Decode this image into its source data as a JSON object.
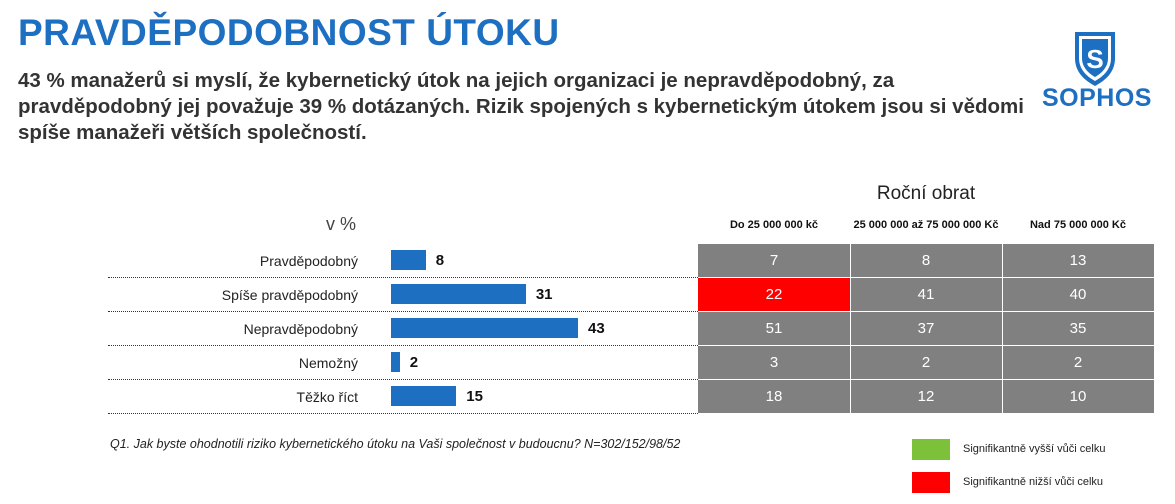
{
  "title": "PRAVDĚPODOBNOST ÚTOKU",
  "subtitle": "43 % manažerů si myslí, že kybernetický útok na jejich organizaci je nepravděpodobný, za pravděpodobný jej považuje 39 % dotázaných. Rizik spojených s kybernetickým útokem jsou si vědomi spíše manažeři větších společností.",
  "logo": {
    "text": "SOPHOS",
    "shield_letter": "S",
    "color": "#1d6fc1"
  },
  "colors": {
    "bar": "#1d6fc1",
    "cell_default": "#808080",
    "significant_higher": "#7dc13a",
    "significant_lower": "#ff0000"
  },
  "chart_data": {
    "type": "bar",
    "orientation": "horizontal",
    "unit_label": "v %",
    "categories": [
      "Pravděpodobný",
      "Spíše pravděpodobný",
      "Nepravděpodobný",
      "Nemožný",
      "Těžko říct"
    ],
    "values": [
      8,
      31,
      43,
      2,
      15
    ],
    "xlim": [
      0,
      100
    ]
  },
  "table": {
    "group_title": "Roční obrat",
    "columns": [
      "Do 25 000 000 kč",
      "25 000 000 až 75 000 000 Kč",
      "Nad 75 000 000 Kč"
    ],
    "rows": [
      [
        {
          "v": "7",
          "sig": ""
        },
        {
          "v": "8",
          "sig": ""
        },
        {
          "v": "13",
          "sig": ""
        }
      ],
      [
        {
          "v": "22",
          "sig": "low"
        },
        {
          "v": "41",
          "sig": ""
        },
        {
          "v": "40",
          "sig": ""
        }
      ],
      [
        {
          "v": "51",
          "sig": ""
        },
        {
          "v": "37",
          "sig": ""
        },
        {
          "v": "35",
          "sig": ""
        }
      ],
      [
        {
          "v": "3",
          "sig": ""
        },
        {
          "v": "2",
          "sig": ""
        },
        {
          "v": "2",
          "sig": ""
        }
      ],
      [
        {
          "v": "18",
          "sig": ""
        },
        {
          "v": "12",
          "sig": ""
        },
        {
          "v": "10",
          "sig": ""
        }
      ]
    ]
  },
  "footnote": "Q1. Jak byste ohodnotili riziko kybernetického útoku na Vaši společnost v budoucnu? N=302/152/98/52",
  "legend": [
    {
      "label": "Signifikantně vyšší vůči celku",
      "color": "#7dc13a"
    },
    {
      "label": "Signifikantně nižší vůči celku",
      "color": "#ff0000"
    }
  ]
}
